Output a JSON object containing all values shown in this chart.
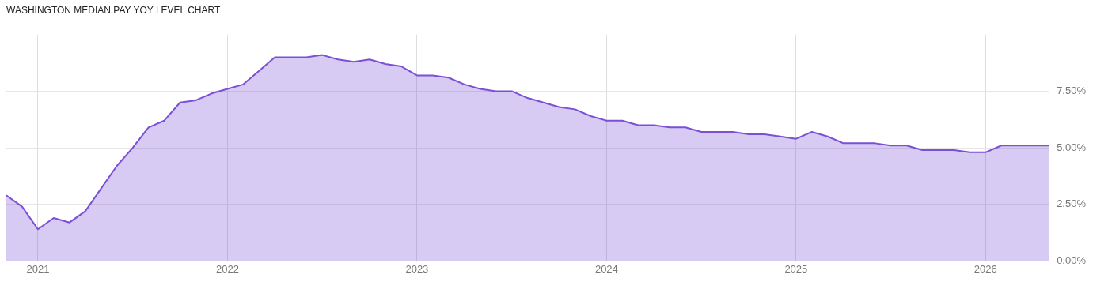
{
  "chart_data": {
    "type": "area",
    "title": "WASHINGTON MEDIAN PAY YOY LEVEL CHART",
    "x": [
      "2020-11",
      "2020-12",
      "2021-01",
      "2021-02",
      "2021-03",
      "2021-04",
      "2021-05",
      "2021-06",
      "2021-07",
      "2021-08",
      "2021-09",
      "2021-10",
      "2021-11",
      "2021-12",
      "2022-01",
      "2022-02",
      "2022-03",
      "2022-04",
      "2022-05",
      "2022-06",
      "2022-07",
      "2022-08",
      "2022-09",
      "2022-10",
      "2022-11",
      "2022-12",
      "2023-01",
      "2023-02",
      "2023-03",
      "2023-04",
      "2023-05",
      "2023-06",
      "2023-07",
      "2023-08",
      "2023-09",
      "2023-10",
      "2023-11",
      "2023-12",
      "2024-01",
      "2024-02",
      "2024-03",
      "2024-04",
      "2024-05",
      "2024-06",
      "2024-07",
      "2024-08",
      "2024-09",
      "2024-10",
      "2024-11",
      "2024-12",
      "2025-01",
      "2025-02",
      "2025-03",
      "2025-04",
      "2025-05",
      "2025-06",
      "2025-07",
      "2025-08",
      "2025-09",
      "2025-10",
      "2025-11",
      "2025-12",
      "2026-01",
      "2026-02",
      "2026-03",
      "2026-04",
      "2026-05"
    ],
    "series": [
      {
        "color": "#7b4fd6",
        "values": [
          2.9,
          2.4,
          1.4,
          1.9,
          1.7,
          2.2,
          3.2,
          4.2,
          5.0,
          5.9,
          6.2,
          7.0,
          7.1,
          7.4,
          7.6,
          7.8,
          8.4,
          9.0,
          9.0,
          9.0,
          9.1,
          8.9,
          8.8,
          8.9,
          8.7,
          8.6,
          8.2,
          8.2,
          8.1,
          7.8,
          7.6,
          7.5,
          7.5,
          7.2,
          7.0,
          6.8,
          6.7,
          6.4,
          6.2,
          6.2,
          6.0,
          6.0,
          5.9,
          5.9,
          5.7,
          5.7,
          5.7,
          5.6,
          5.6,
          5.5,
          5.4,
          5.7,
          5.5,
          5.2,
          5.2,
          5.2,
          5.1,
          5.1,
          4.9,
          4.9,
          4.9,
          4.8,
          4.8,
          5.1,
          5.1,
          5.1,
          5.1
        ]
      }
    ],
    "xlim": [
      "2020-11",
      "2026-05"
    ],
    "xticks": [
      "2021",
      "2022",
      "2023",
      "2024",
      "2025",
      "2026"
    ],
    "ylim": [
      0,
      10
    ],
    "yticks": [
      {
        "value": 0,
        "label": "0.00%"
      },
      {
        "value": 2.5,
        "label": "2.50%"
      },
      {
        "value": 5,
        "label": "5.00%"
      },
      {
        "value": 7.5,
        "label": "7.50%"
      }
    ],
    "grid": true,
    "legend": false,
    "marker": "none",
    "line_style": "solid"
  }
}
